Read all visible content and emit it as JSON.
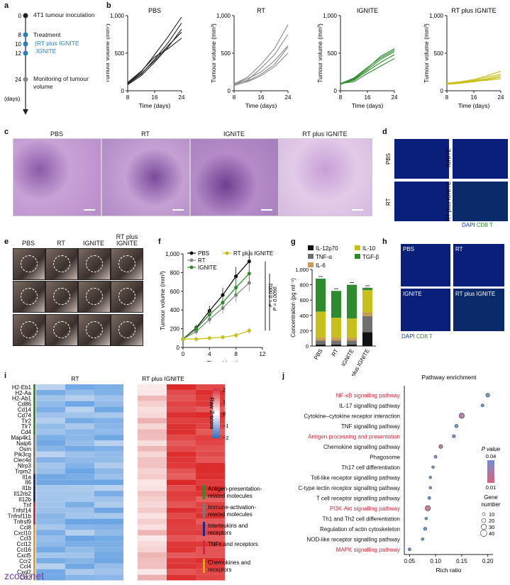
{
  "panel_letters": {
    "a": "a",
    "b": "b",
    "c": "c",
    "d": "d",
    "e": "e",
    "f": "f",
    "g": "g",
    "h": "h",
    "i": "i",
    "j": "j"
  },
  "timeline": {
    "ticks": [
      "0",
      "8",
      "10",
      "12",
      "24"
    ],
    "unit": "(days)",
    "labels": {
      "inoc": "4T1 tumour inoculation",
      "treat": "Treatment",
      "treat_sub": "(RT plus IGNITE",
      "treat_sub2": "IGNITE",
      "monitor": "Monitoring of tumour volume"
    }
  },
  "growth": {
    "panels": [
      {
        "title": "PBS",
        "color": "#222222"
      },
      {
        "title": "RT",
        "color": "#8a8a8a"
      },
      {
        "title": "IGNITE",
        "color": "#2e8b2e"
      },
      {
        "title": "RT plus IGNITE",
        "color": "#c8c01a"
      }
    ],
    "xticks": [
      "8",
      "16",
      "24"
    ],
    "yticks": [
      "0",
      "500",
      "1,000"
    ],
    "xlabel": "Time (days)",
    "ylabel": "Tumour volume (mm³)"
  },
  "histology": {
    "titles": [
      "PBS",
      "RT",
      "IGNITE",
      "RT plus IGNITE"
    ]
  },
  "fluor_d": {
    "labels": [
      "PBS",
      "IGNITE",
      "RT",
      "RT plus IGNITE"
    ],
    "legend_dapi": "DAPI",
    "legend_cd8": "CD8 T"
  },
  "photos": {
    "titles": [
      "PBS",
      "RT",
      "IGNITE",
      "RT plus IGNITE"
    ]
  },
  "chart_data": [
    {
      "type": "line",
      "xlabel": "Time (days)",
      "ylabel": "Tumour volume (mm³)",
      "x": [
        0,
        2,
        4,
        6,
        8,
        10
      ],
      "xlim": [
        0,
        12
      ],
      "ylim": [
        0,
        1000
      ],
      "xticks": [
        "0",
        "4",
        "8",
        "12"
      ],
      "yticks": [
        "0",
        "200",
        "400",
        "600",
        "800",
        "1,000"
      ],
      "series": [
        {
          "name": "PBS",
          "color": "#111111",
          "values": [
            90,
            210,
            390,
            560,
            760,
            920
          ]
        },
        {
          "name": "RT",
          "color": "#888888",
          "values": [
            90,
            170,
            300,
            420,
            560,
            690
          ]
        },
        {
          "name": "IGNITE",
          "color": "#2e8b2e",
          "values": [
            90,
            200,
            350,
            480,
            640,
            790
          ]
        },
        {
          "name": "RT plus IGNITE",
          "color": "#c8c01a",
          "values": [
            90,
            90,
            100,
            110,
            130,
            180
          ]
        }
      ],
      "annotations": [
        "P = 0.0090",
        "P < 0.0001"
      ]
    },
    {
      "type": "bar",
      "ylabel": "Concentration (pg ml⁻¹)",
      "categories": [
        "PBS",
        "RT",
        "IGNITE",
        "RT plus IGNITE"
      ],
      "ylim": [
        0,
        1000
      ],
      "yticks": [
        "0",
        "200",
        "400",
        "600",
        "800",
        "1,000"
      ],
      "series": [
        {
          "name": "IL-12p70",
          "color": "#111111",
          "values": [
            20,
            20,
            20,
            180
          ]
        },
        {
          "name": "TNF-α",
          "color": "#707070",
          "values": [
            50,
            50,
            50,
            210
          ]
        },
        {
          "name": "IL-6",
          "color": "#c89a55",
          "values": [
            40,
            40,
            40,
            50
          ]
        },
        {
          "name": "IL-10",
          "color": "#c8c01a",
          "values": [
            340,
            260,
            250,
            290
          ]
        },
        {
          "name": "TGF-β",
          "color": "#2e8b2e",
          "values": [
            430,
            350,
            440,
            30
          ]
        }
      ]
    },
    {
      "type": "heatmap",
      "columns": [
        "RT",
        "RT plus IGNITE"
      ],
      "rows": [
        "H2-Eb1",
        "H2-Aa",
        "H2-Ab1",
        "Cd86",
        "Cd14",
        "Cd74",
        "Tlr2",
        "Tlr7",
        "Cd4",
        "Map4k1",
        "Naip6",
        "Osm",
        "Pik3cg",
        "Clec4d",
        "Nlrp3",
        "Trpm2",
        "Il1a",
        "Il6",
        "Il1b",
        "Il12rb2",
        "Il12b",
        "Tnf",
        "Tnfsf14",
        "Tnfrsf11b",
        "Tnfrsf9",
        "Ccl8",
        "Cxcl10",
        "Ccl3",
        "Ccl12",
        "Ccl16",
        "Cxcl5",
        "Ccr2",
        "Ccl4",
        "Cxcl2",
        "Ccl2"
      ],
      "colorbar": {
        "title": "Raw Z score",
        "ticks": [
          "2",
          "1",
          "0",
          "−1",
          "−2"
        ]
      },
      "groups": [
        "Antigen-presentation-related molecules",
        "Immune-activation-related molecules",
        "Interleukins and receptors",
        "TNFs and receptors",
        "Chemokines and receptors"
      ],
      "group_colors": [
        "#2e8b2e",
        "#7a7a7a",
        "#1a2a8a",
        "#d0283c",
        "#e89a30"
      ]
    },
    {
      "type": "scatter",
      "title": "Pathway enrichment",
      "xlabel": "Rich ratio",
      "xlim": [
        0.04,
        0.21
      ],
      "xticks": [
        "0.05",
        "0.10",
        "0.15",
        "0.20"
      ],
      "categories": [
        "NF-κB signalling pathway",
        "IL-17 signalling pathway",
        "Cytokine–cytokine receptor interaction",
        "TNF signalling pathway",
        "Antigen processing and presentation",
        "Chemokine signalling pathway",
        "Phagosome",
        "Th17 cell differentiation",
        "Toll-like receptor signalling pathway",
        "C-type lectin receptor signalling pathway",
        "T cell receptor signalling pathway",
        "PI3K-Akt signalling pathway",
        "Th1 and Th2 cell differentiation",
        "Regulation of actin cytoskeleton",
        "NOD-like receptor signalling pathway",
        "MAPK signalling pathway"
      ],
      "highlight": [
        true,
        false,
        false,
        false,
        true,
        false,
        false,
        false,
        false,
        false,
        false,
        true,
        false,
        false,
        false,
        true
      ],
      "rich_ratio": [
        0.2,
        0.19,
        0.15,
        0.14,
        0.135,
        0.11,
        0.1,
        0.095,
        0.09,
        0.09,
        0.088,
        0.085,
        0.082,
        0.08,
        0.075,
        0.05
      ],
      "p_value": [
        0.035,
        0.04,
        0.02,
        0.035,
        0.035,
        0.02,
        0.03,
        0.04,
        0.04,
        0.04,
        0.035,
        0.015,
        0.04,
        0.04,
        0.04,
        0.04
      ],
      "gene_number": [
        18,
        10,
        30,
        14,
        12,
        18,
        10,
        8,
        8,
        8,
        10,
        30,
        8,
        12,
        8,
        10
      ],
      "legend_p": {
        "title": "P value",
        "ticks": [
          "0.04",
          "0.01"
        ]
      },
      "legend_size": {
        "title": "Gene number",
        "ticks": [
          "10",
          "20",
          "30",
          "40"
        ]
      }
    }
  ],
  "fluor_h": {
    "labels": [
      "PBS",
      "RT",
      "IGNITE",
      "RT plus IGNITE"
    ],
    "legend_dapi": "DAPI",
    "legend_cd8": "CD8 T"
  },
  "watermark": "zcool.net"
}
